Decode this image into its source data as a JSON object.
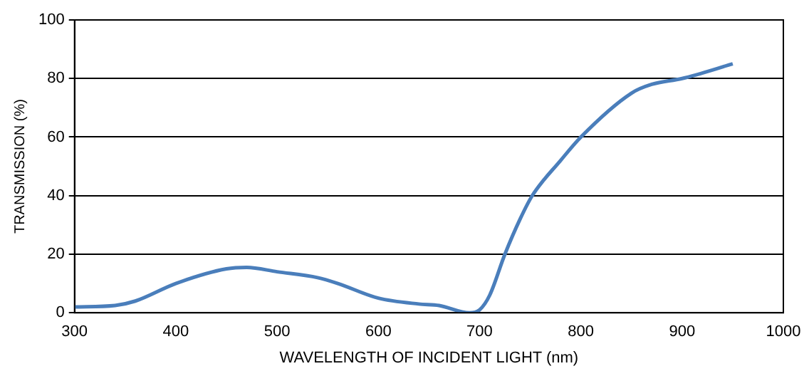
{
  "chart_data": {
    "type": "line",
    "xlabel": "WAVELENGTH OF INCIDENT LIGHT (nm)",
    "ylabel": "TRANSMISSION (%)",
    "x": [
      300,
      340,
      360,
      400,
      450,
      470,
      500,
      540,
      560,
      600,
      640,
      660,
      690,
      700,
      710,
      725,
      740,
      752,
      780,
      800,
      850,
      870,
      900,
      950
    ],
    "series": [
      {
        "color": "#4a7ebb",
        "values": [
          2,
          2.5,
          4,
          10,
          15,
          15.5,
          14,
          12,
          10,
          5,
          3,
          2.5,
          0,
          1,
          6,
          20,
          32,
          40,
          52,
          60,
          75,
          78,
          80,
          85
        ]
      }
    ],
    "xlim": [
      300,
      1000
    ],
    "xticks": [
      300,
      400,
      500,
      600,
      700,
      800,
      900,
      1000
    ],
    "ylim": [
      0,
      100
    ],
    "yticks": [
      0,
      20,
      40,
      60,
      80,
      100
    ],
    "grid": "y",
    "legend": false
  }
}
